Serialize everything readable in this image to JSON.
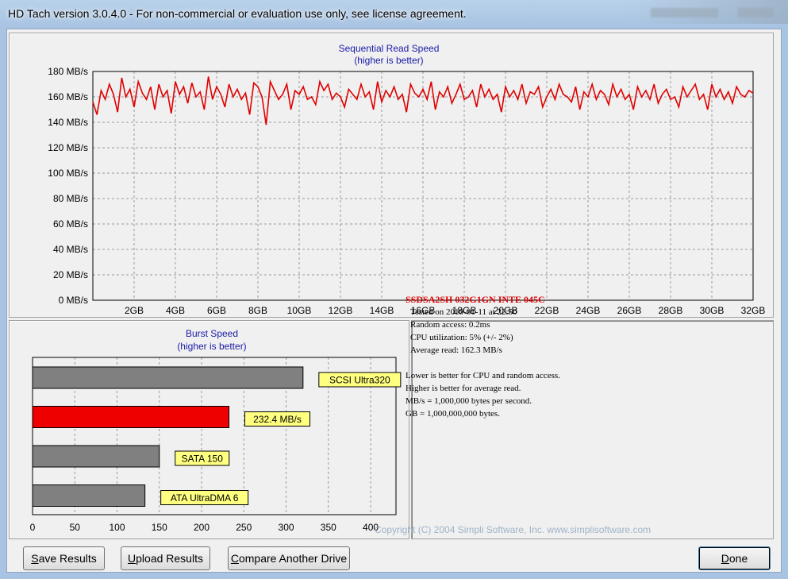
{
  "window": {
    "title": "HD Tach version 3.0.4.0  - For non-commercial or evaluation use only, see license agreement."
  },
  "seq_chart": {
    "title": "Sequential Read Speed",
    "subtitle": "(higher is better)",
    "y_ticks": [
      "0 MB/s",
      "20 MB/s",
      "40 MB/s",
      "60 MB/s",
      "80 MB/s",
      "100 MB/s",
      "120 MB/s",
      "140 MB/s",
      "160 MB/s",
      "180 MB/s"
    ],
    "x_ticks": [
      "2GB",
      "4GB",
      "6GB",
      "8GB",
      "10GB",
      "12GB",
      "14GB",
      "16GB",
      "18GB",
      "20GB",
      "22GB",
      "24GB",
      "26GB",
      "28GB",
      "30GB",
      "32GB"
    ]
  },
  "burst_chart": {
    "title": "Burst Speed",
    "subtitle": "(higher is better)",
    "x_ticks": [
      "0",
      "50",
      "100",
      "150",
      "200",
      "250",
      "300",
      "350",
      "400"
    ]
  },
  "chart_data": [
    {
      "type": "line",
      "title": "Sequential Read Speed",
      "subtitle": "(higher is better)",
      "xlabel": "",
      "ylabel": "",
      "ylim": [
        0,
        180
      ],
      "xlim": [
        0,
        32
      ],
      "x_unit": "GB",
      "y_unit": "MB/s",
      "grid": true,
      "series": [
        {
          "color": "#e00000",
          "x": [
            0,
            0.2,
            0.4,
            0.6,
            0.8,
            1.0,
            1.2,
            1.4,
            1.6,
            1.8,
            2.0,
            2.2,
            2.4,
            2.6,
            2.8,
            3.0,
            3.2,
            3.4,
            3.6,
            3.8,
            4.0,
            4.2,
            4.4,
            4.6,
            4.8,
            5.0,
            5.2,
            5.4,
            5.6,
            5.8,
            6.0,
            6.2,
            6.4,
            6.6,
            6.8,
            7.0,
            7.2,
            7.4,
            7.6,
            7.8,
            8.0,
            8.2,
            8.4,
            8.6,
            8.8,
            9.0,
            9.2,
            9.4,
            9.6,
            9.8,
            10.0,
            10.2,
            10.4,
            10.6,
            10.8,
            11.0,
            11.2,
            11.4,
            11.6,
            11.8,
            12.0,
            12.2,
            12.4,
            12.6,
            12.8,
            13.0,
            13.2,
            13.4,
            13.6,
            13.8,
            14.0,
            14.2,
            14.4,
            14.6,
            14.8,
            15.0,
            15.2,
            15.4,
            15.6,
            15.8,
            16.0,
            16.2,
            16.4,
            16.6,
            16.8,
            17.0,
            17.2,
            17.4,
            17.6,
            17.8,
            18.0,
            18.2,
            18.4,
            18.6,
            18.8,
            19.0,
            19.2,
            19.4,
            19.6,
            19.8,
            20.0,
            20.2,
            20.4,
            20.6,
            20.8,
            21.0,
            21.2,
            21.4,
            21.6,
            21.8,
            22.0,
            22.2,
            22.4,
            22.6,
            22.8,
            23.0,
            23.2,
            23.4,
            23.6,
            23.8,
            24.0,
            24.2,
            24.4,
            24.6,
            24.8,
            25.0,
            25.2,
            25.4,
            25.6,
            25.8,
            26.0,
            26.2,
            26.4,
            26.6,
            26.8,
            27.0,
            27.2,
            27.4,
            27.6,
            27.8,
            28.0,
            28.2,
            28.4,
            28.6,
            28.8,
            29.0,
            29.2,
            29.4,
            29.6,
            29.8,
            30.0,
            30.2,
            30.4,
            30.6,
            30.8,
            31.0,
            31.2,
            31.4,
            31.6,
            31.8,
            32.0
          ],
          "y": [
            156,
            146,
            165,
            158,
            170,
            162,
            148,
            175,
            160,
            166,
            152,
            172,
            163,
            158,
            168,
            150,
            170,
            160,
            165,
            147,
            172,
            162,
            168,
            155,
            171,
            160,
            164,
            150,
            176,
            158,
            168,
            162,
            152,
            170,
            160,
            166,
            158,
            163,
            146,
            171,
            168,
            160,
            138,
            172,
            165,
            158,
            162,
            170,
            150,
            165,
            162,
            168,
            158,
            160,
            154,
            172,
            165,
            170,
            158,
            163,
            160,
            152,
            166,
            162,
            158,
            170,
            160,
            164,
            150,
            172,
            156,
            165,
            160,
            168,
            158,
            162,
            148,
            170,
            163,
            160,
            166,
            158,
            172,
            150,
            164,
            160,
            168,
            155,
            162,
            170,
            158,
            160,
            165,
            152,
            170,
            160,
            166,
            158,
            162,
            148,
            168,
            160,
            165,
            158,
            170,
            155,
            164,
            162,
            168,
            152,
            160,
            166,
            158,
            170,
            162,
            160,
            156,
            168,
            150,
            164,
            160,
            170,
            158,
            165,
            162,
            154,
            170,
            160,
            166,
            158,
            162,
            150,
            168,
            160,
            165,
            158,
            170,
            155,
            162,
            166,
            158,
            160,
            152,
            168,
            160,
            165,
            170,
            158,
            162,
            150,
            170,
            160,
            166,
            158,
            164,
            155,
            168,
            162,
            160,
            165,
            163
          ]
        }
      ]
    },
    {
      "type": "bar",
      "orientation": "horizontal",
      "title": "Burst Speed",
      "subtitle": "(higher is better)",
      "xlabel": "",
      "ylabel": "",
      "xlim": [
        0,
        430
      ],
      "grid": true,
      "categories": [
        "SCSI Ultra320",
        "232.4 MB/s",
        "SATA 150",
        "ATA UltraDMA 6"
      ],
      "values": [
        320,
        232.4,
        150,
        133
      ],
      "colors": [
        "#808080",
        "#ee0000",
        "#808080",
        "#808080"
      ]
    }
  ],
  "info": {
    "drive_name": "SSDSA2SH 032G1GN INTE 045C",
    "tested_on": "Tested on 2010-01-11 at 22:50",
    "random_access": "Random access: 0.2ms",
    "cpu_utilization": "CPU utilization: 5% (+/- 2%)",
    "average_read": "Average read: 162.3 MB/s",
    "note1": "Lower is better for CPU and random access.",
    "note2": "Higher is better for average read.",
    "note3": "MB/s = 1,000,000 bytes per second.",
    "note4": "GB = 1,000,000,000 bytes."
  },
  "buttons": {
    "save_key": "S",
    "save_rest": "ave Results",
    "upload_key": "U",
    "upload_rest": "pload Results",
    "compare_key": "C",
    "compare_rest": "ompare Another Drive",
    "done_key": "D",
    "done_rest": "one"
  },
  "footer": {
    "copyright": "Copyright (C) 2004 Simpli Software, Inc. www.simplisoftware.com"
  }
}
